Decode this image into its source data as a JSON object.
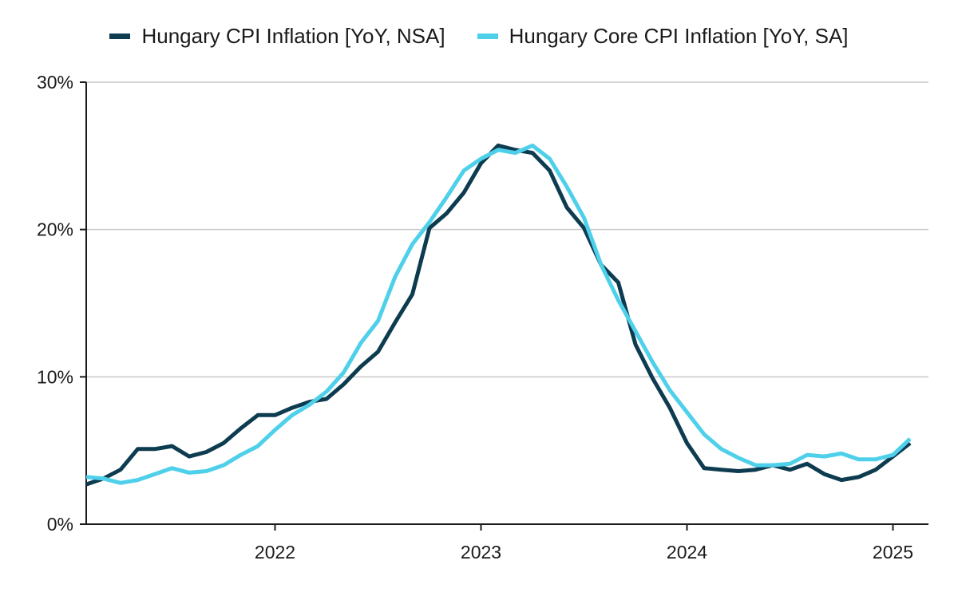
{
  "chart_data": {
    "type": "line",
    "title": "",
    "xlabel": "",
    "ylabel": "",
    "ylim": [
      0,
      30
    ],
    "yticks": [
      0,
      10,
      20,
      30
    ],
    "ytick_labels": [
      "0%",
      "10%",
      "20%",
      "30%"
    ],
    "xticks": [
      "2022-01",
      "2023-01",
      "2024-01",
      "2025-01"
    ],
    "xtick_labels": [
      "2022",
      "2023",
      "2024",
      "2025"
    ],
    "xlim": [
      "2021-02",
      "2025-03"
    ],
    "grid": "horizontal",
    "legend_position": "top-center",
    "x": [
      "2021-02",
      "2021-03",
      "2021-04",
      "2021-05",
      "2021-06",
      "2021-07",
      "2021-08",
      "2021-09",
      "2021-10",
      "2021-11",
      "2021-12",
      "2022-01",
      "2022-02",
      "2022-03",
      "2022-04",
      "2022-05",
      "2022-06",
      "2022-07",
      "2022-08",
      "2022-09",
      "2022-10",
      "2022-11",
      "2022-12",
      "2023-01",
      "2023-02",
      "2023-03",
      "2023-04",
      "2023-05",
      "2023-06",
      "2023-07",
      "2023-08",
      "2023-09",
      "2023-10",
      "2023-11",
      "2023-12",
      "2024-01",
      "2024-02",
      "2024-03",
      "2024-04",
      "2024-05",
      "2024-06",
      "2024-07",
      "2024-08",
      "2024-09",
      "2024-10",
      "2024-11",
      "2024-12",
      "2025-01",
      "2025-02"
    ],
    "series": [
      {
        "name": "Hungary CPI Inflation [YoY, NSA]",
        "color": "#0d3b4f",
        "values": [
          2.7,
          3.1,
          3.7,
          5.1,
          5.1,
          5.3,
          4.6,
          4.9,
          5.5,
          6.5,
          7.4,
          7.4,
          7.9,
          8.3,
          8.5,
          9.5,
          10.7,
          11.7,
          13.7,
          15.6,
          20.1,
          21.1,
          22.5,
          24.5,
          25.7,
          25.4,
          25.2,
          24.0,
          21.5,
          20.1,
          17.6,
          16.4,
          12.2,
          9.9,
          7.9,
          5.5,
          3.8,
          3.7,
          3.6,
          3.7,
          4.0,
          3.7,
          4.1,
          3.4,
          3.0,
          3.2,
          3.7,
          4.6,
          5.5
        ]
      },
      {
        "name": "Hungary Core CPI Inflation [YoY, SA]",
        "color": "#4fd0ea",
        "values": [
          3.2,
          3.1,
          2.8,
          3.0,
          3.4,
          3.8,
          3.5,
          3.6,
          4.0,
          4.7,
          5.3,
          6.4,
          7.4,
          8.1,
          9.0,
          10.3,
          12.3,
          13.8,
          16.8,
          19.0,
          20.5,
          22.2,
          24.0,
          24.8,
          25.4,
          25.2,
          25.7,
          24.8,
          22.9,
          20.8,
          17.6,
          15.2,
          13.1,
          11.0,
          9.1,
          7.6,
          6.1,
          5.1,
          4.5,
          4.0,
          4.0,
          4.1,
          4.7,
          4.6,
          4.8,
          4.4,
          4.4,
          4.7,
          5.8
        ]
      }
    ]
  }
}
